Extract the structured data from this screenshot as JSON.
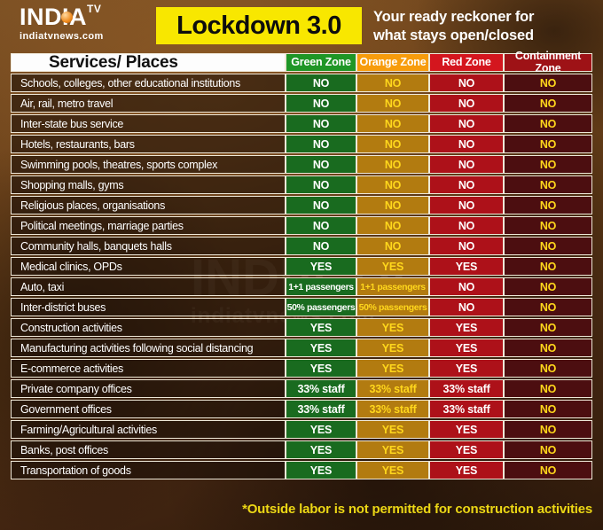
{
  "header": {
    "logo_name": "INDIA",
    "logo_tv": "TV",
    "logo_site": "indiatvnews.com",
    "title": "Lockdown 3.0",
    "tagline_line1": "Your ready reckoner for",
    "tagline_line2": "what stays open/closed"
  },
  "table": {
    "services_header": "Services/ Places",
    "zones": [
      {
        "label": "Green Zone",
        "header_color": "#1f9626",
        "cell_color": "#196b1f",
        "value_color": "#ffffff"
      },
      {
        "label": "Orange Zone",
        "header_color": "#f79c0c",
        "cell_color": "#b27b10",
        "value_color": "#ffd71c"
      },
      {
        "label": "Red Zone",
        "header_color": "#d4161e",
        "cell_color": "#ad1119",
        "value_color": "#ffffff"
      },
      {
        "label": "Containment Zone",
        "header_color": "#9e1216",
        "cell_color": "#4c0e10",
        "value_color": "#ffd71c"
      }
    ]
  },
  "chart_data": {
    "type": "table",
    "title": "Lockdown 3.0",
    "subtitle": "Your ready reckoner for what stays open/closed",
    "columns": [
      "Services/ Places",
      "Green Zone",
      "Orange Zone",
      "Red Zone",
      "Containment Zone"
    ],
    "rows": [
      [
        "Schools, colleges, other educational institutions",
        "NO",
        "NO",
        "NO",
        "NO"
      ],
      [
        "Air, rail, metro travel",
        "NO",
        "NO",
        "NO",
        "NO"
      ],
      [
        "Inter-state bus service",
        "NO",
        "NO",
        "NO",
        "NO"
      ],
      [
        "Hotels, restaurants, bars",
        "NO",
        "NO",
        "NO",
        "NO"
      ],
      [
        "Swimming pools, theatres, sports complex",
        "NO",
        "NO",
        "NO",
        "NO"
      ],
      [
        "Shopping malls, gyms",
        "NO",
        "NO",
        "NO",
        "NO"
      ],
      [
        "Religious places, organisations",
        "NO",
        "NO",
        "NO",
        "NO"
      ],
      [
        "Political meetings, marriage parties",
        "NO",
        "NO",
        "NO",
        "NO"
      ],
      [
        "Community halls, banquets halls",
        "NO",
        "NO",
        "NO",
        "NO"
      ],
      [
        "Medical clinics, OPDs",
        "YES",
        "YES",
        "YES",
        "NO"
      ],
      [
        "Auto, taxi",
        "1+1 passengers",
        "1+1 passengers",
        "NO",
        "NO"
      ],
      [
        "Inter-district buses",
        "50% passengers",
        "50% passengers",
        "NO",
        "NO"
      ],
      [
        "Construction activities",
        "YES",
        "YES",
        "YES",
        "NO"
      ],
      [
        "Manufacturing activities following social distancing",
        "YES",
        "YES",
        "YES",
        "NO"
      ],
      [
        "E-commerce activities",
        "YES",
        "YES",
        "YES",
        "NO"
      ],
      [
        "Private company offices",
        "33% staff",
        "33% staff",
        "33% staff",
        "NO"
      ],
      [
        "Government offices",
        "33% staff",
        "33% staff",
        "33% staff",
        "NO"
      ],
      [
        "Farming/Agricultural activities",
        "YES",
        "YES",
        "YES",
        "NO"
      ],
      [
        "Banks, post offices",
        "YES",
        "YES",
        "YES",
        "NO"
      ],
      [
        "Transportation of goods",
        "YES",
        "YES",
        "YES",
        "NO"
      ]
    ],
    "footnote": "*Outside labor is not permitted for construction activities"
  },
  "watermark": {
    "line1": "INDIA TV",
    "line2": "indiatvnews.com"
  },
  "footer": {
    "note": "*Outside labor is not permitted for construction activities"
  },
  "colors": {
    "title_bg": "#f8e700",
    "footnote_text": "#ecd715",
    "row_label_bg": "#2a180c",
    "border": "#efe8d8"
  }
}
